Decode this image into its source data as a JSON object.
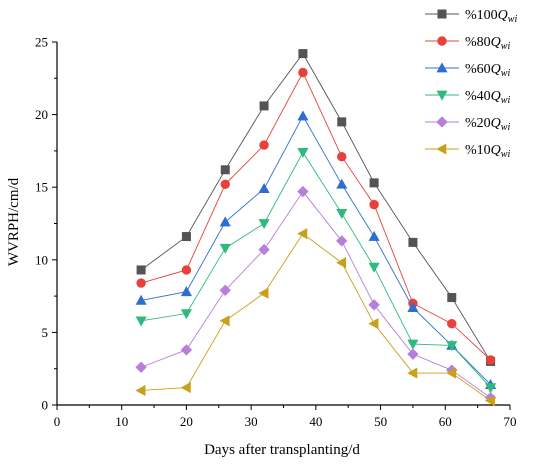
{
  "chart_data": {
    "type": "line",
    "xlabel": "Days after transplanting/d",
    "ylabel": "WVRPH/cm/d",
    "xlim": [
      0,
      70
    ],
    "ylim": [
      0,
      25
    ],
    "xticks": [
      0,
      10,
      20,
      30,
      40,
      50,
      60,
      70
    ],
    "yticks": [
      0,
      5,
      10,
      15,
      20,
      25
    ],
    "grid": false,
    "legend_position": "top-right",
    "x": [
      13,
      20,
      26,
      32,
      38,
      44,
      49,
      55,
      61,
      67
    ],
    "series": [
      {
        "name": "%100Q_wi",
        "name_prefix": "%100",
        "name_var": "Q",
        "name_sub": "wi",
        "color": "#545454",
        "marker": "square",
        "values": [
          9.3,
          11.6,
          16.2,
          20.6,
          24.2,
          19.5,
          15.3,
          11.2,
          7.4,
          3.0
        ]
      },
      {
        "name": "%80Q_wi",
        "name_prefix": "%80",
        "name_var": "Q",
        "name_sub": "wi",
        "color": "#e8413c",
        "marker": "circle",
        "values": [
          8.4,
          9.3,
          15.2,
          17.9,
          22.9,
          17.1,
          13.8,
          7.0,
          5.6,
          3.1
        ]
      },
      {
        "name": "%60Q_wi",
        "name_prefix": "%60",
        "name_var": "Q",
        "name_sub": "wi",
        "color": "#2d6fd1",
        "marker": "triangle-up",
        "values": [
          7.2,
          7.8,
          12.6,
          14.9,
          19.9,
          15.2,
          11.6,
          6.7,
          4.1,
          1.4
        ]
      },
      {
        "name": "%40Q_wi",
        "name_prefix": "%40",
        "name_var": "Q",
        "name_sub": "wi",
        "color": "#2fba7d",
        "marker": "triangle-down",
        "values": [
          5.8,
          6.3,
          10.8,
          12.5,
          17.4,
          13.2,
          9.5,
          4.2,
          4.1,
          1.2
        ]
      },
      {
        "name": "%20Q_wi",
        "name_prefix": "%20",
        "name_var": "Q",
        "name_sub": "wi",
        "color": "#b77fdd",
        "marker": "diamond",
        "values": [
          2.6,
          3.8,
          7.9,
          10.7,
          14.7,
          11.3,
          6.9,
          3.5,
          2.4,
          0.5
        ]
      },
      {
        "name": "%10Q_wi",
        "name_prefix": "%10",
        "name_var": "Q",
        "name_sub": "wi",
        "color": "#c9a019",
        "marker": "triangle-left",
        "values": [
          1.0,
          1.2,
          5.8,
          7.7,
          11.8,
          9.8,
          5.6,
          2.2,
          2.2,
          0.3
        ]
      }
    ]
  }
}
